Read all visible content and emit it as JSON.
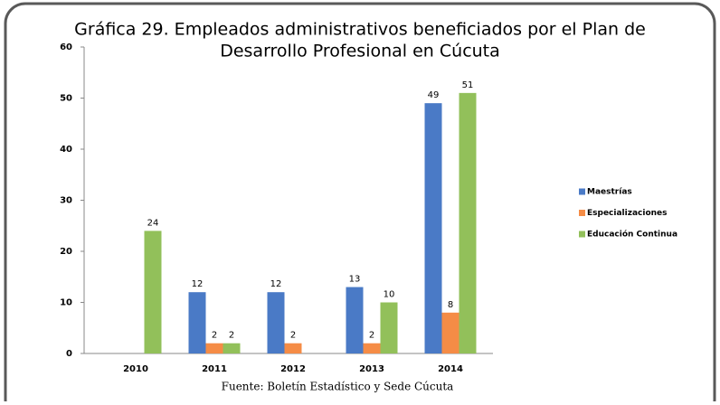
{
  "chart_data": {
    "type": "bar",
    "title": [
      "Gráfica 29. Empleados administrativos beneficiados por el Plan de",
      "Desarrollo Profesional en Cúcuta"
    ],
    "source": "Fuente: Boletín Estadístico y Sede Cúcuta",
    "categories": [
      "2010",
      "2011",
      "2012",
      "2013",
      "2014"
    ],
    "series": [
      {
        "name": "Maestrías",
        "color": "#4a7ac6",
        "values": [
          null,
          12,
          12,
          13,
          49
        ]
      },
      {
        "name": "Especializaciones",
        "color": "#f58c46",
        "values": [
          null,
          2,
          2,
          2,
          8
        ]
      },
      {
        "name": "Educación Continua",
        "color": "#92c05a",
        "values": [
          24,
          2,
          null,
          10,
          51
        ]
      }
    ],
    "ylim": [
      0,
      60
    ],
    "yticks": [
      0,
      10,
      20,
      30,
      40,
      50,
      60
    ],
    "grid": false,
    "legend": "right"
  }
}
